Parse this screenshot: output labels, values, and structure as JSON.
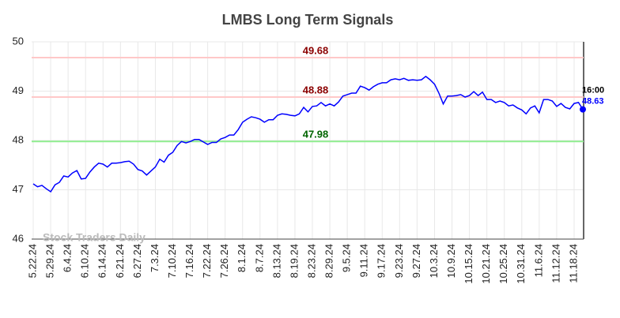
{
  "chart_data": {
    "type": "line",
    "title": "LMBS Long Term Signals",
    "categories": [
      "5.22.24",
      null,
      null,
      null,
      "5.29.24",
      null,
      null,
      null,
      "6.4.24",
      null,
      null,
      null,
      "6.10.24",
      null,
      null,
      null,
      "6.14.24",
      null,
      null,
      null,
      "6.21.24",
      null,
      null,
      null,
      "6.27.24",
      null,
      null,
      null,
      "7.3.24",
      null,
      null,
      null,
      "7.10.24",
      null,
      null,
      null,
      "7.16.24",
      null,
      null,
      null,
      "7.22.24",
      null,
      null,
      null,
      "7.26.24",
      null,
      null,
      null,
      "8.1.24",
      null,
      null,
      null,
      "8.7.24",
      null,
      null,
      null,
      "8.13.24",
      null,
      null,
      null,
      "8.19.24",
      null,
      null,
      null,
      "8.23.24",
      null,
      null,
      null,
      "8.29.24",
      null,
      null,
      null,
      "9.5.24",
      null,
      null,
      null,
      "9.11.24",
      null,
      null,
      null,
      "9.17.24",
      null,
      null,
      null,
      "9.23.24",
      null,
      null,
      null,
      "9.27.24",
      null,
      null,
      null,
      "10.3.24",
      null,
      null,
      null,
      "10.9.24",
      null,
      null,
      null,
      "10.15.24",
      null,
      null,
      null,
      "10.21.24",
      null,
      null,
      null,
      "10.25.24",
      null,
      null,
      null,
      "10.31.24",
      null,
      null,
      null,
      "11.6.24",
      null,
      null,
      null,
      "11.12.24",
      null,
      null,
      null,
      "11.18.24",
      null,
      null
    ],
    "values": [
      47.12,
      47.06,
      47.09,
      47.02,
      46.96,
      47.1,
      47.15,
      47.28,
      47.26,
      47.34,
      47.39,
      47.22,
      47.23,
      47.36,
      47.46,
      47.54,
      47.52,
      47.46,
      47.54,
      47.54,
      47.55,
      47.57,
      47.58,
      47.52,
      47.41,
      47.38,
      47.3,
      47.38,
      47.46,
      47.62,
      47.56,
      47.7,
      47.76,
      47.9,
      47.98,
      47.95,
      47.98,
      48.02,
      48.02,
      47.97,
      47.92,
      47.96,
      47.96,
      48.03,
      48.06,
      48.11,
      48.11,
      48.22,
      48.37,
      48.43,
      48.48,
      48.46,
      48.43,
      48.37,
      48.42,
      48.42,
      48.51,
      48.54,
      48.53,
      48.51,
      48.5,
      48.54,
      48.67,
      48.58,
      48.69,
      48.7,
      48.77,
      48.7,
      48.74,
      48.7,
      48.78,
      48.9,
      48.93,
      48.96,
      48.96,
      49.1,
      49.07,
      49.02,
      49.09,
      49.14,
      49.17,
      49.17,
      49.23,
      49.25,
      49.23,
      49.26,
      49.22,
      49.23,
      49.22,
      49.23,
      49.3,
      49.23,
      49.14,
      48.96,
      48.74,
      48.9,
      48.9,
      48.91,
      48.93,
      48.88,
      48.91,
      48.99,
      48.91,
      48.98,
      48.83,
      48.83,
      48.77,
      48.8,
      48.77,
      48.7,
      48.72,
      48.66,
      48.62,
      48.54,
      48.66,
      48.7,
      48.56,
      48.83,
      48.83,
      48.8,
      48.69,
      48.75,
      48.67,
      48.64,
      48.75,
      48.77,
      48.63
    ],
    "color": "#0000ff",
    "ylim": [
      46,
      50
    ],
    "yticks": [
      46,
      47,
      48,
      49,
      50
    ],
    "grid": true,
    "levels": [
      {
        "value": 49.68,
        "line_color": "#ffc8c8",
        "text_color": "#8b0000"
      },
      {
        "value": 48.88,
        "line_color": "#ffc8c8",
        "text_color": "#8b0000"
      },
      {
        "value": 47.98,
        "line_color": "#90ee90",
        "text_color": "#006400"
      }
    ],
    "last_time": "16:00",
    "watermark": "Stock Traders Daily"
  }
}
